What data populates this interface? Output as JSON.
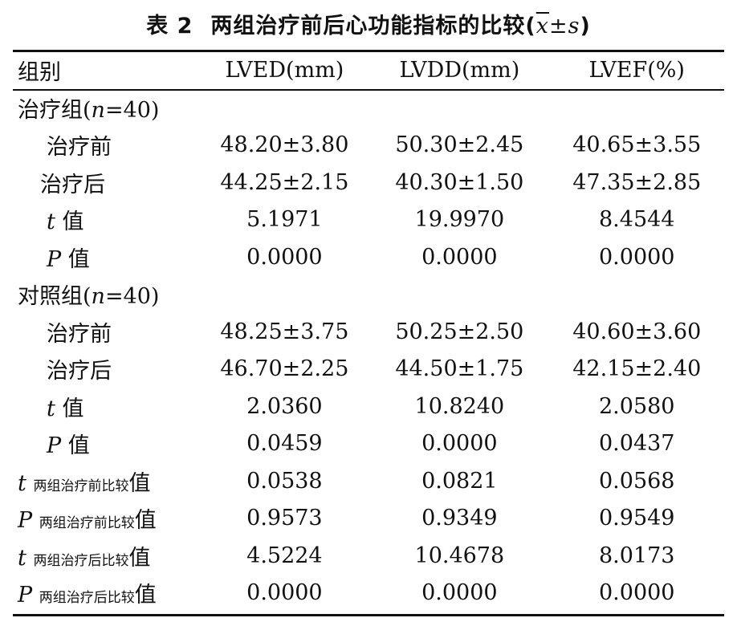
{
  "title": {
    "number": "表 2",
    "text": "两组治疗前后心功能指标的比较",
    "stat_open": "(",
    "stat_mean": "x",
    "stat_pm": "±",
    "stat_sd": "s",
    "stat_close": ")"
  },
  "table": {
    "headers": [
      "组别",
      "LVED(mm)",
      "LVDD(mm)",
      "LVEF(%)"
    ],
    "groups": [
      {
        "label_prefix": "治疗组(",
        "label_n": "n",
        "label_suffix": "=40)",
        "rows": [
          {
            "label": "治疗前",
            "values": [
              "48.20±3.80",
              "50.30±2.45",
              "40.65±3.55"
            ]
          },
          {
            "label": "治疗后",
            "values": [
              "44.25±2.15",
              "40.30±1.50",
              "47.35±2.85"
            ]
          },
          {
            "stat": "t",
            "suffix": "值",
            "values": [
              "5.1971",
              "19.9970",
              "8.4544"
            ]
          },
          {
            "stat": "P",
            "suffix": "值",
            "values": [
              "0.0000",
              "0.0000",
              "0.0000"
            ]
          }
        ]
      },
      {
        "label_prefix": "对照组(",
        "label_n": "n",
        "label_suffix": "=40)",
        "rows": [
          {
            "label": "治疗前",
            "values": [
              "48.25±3.75",
              "50.25±2.50",
              "40.60±3.60"
            ]
          },
          {
            "label": "治疗后",
            "values": [
              "46.70±2.25",
              "44.50±1.75",
              "42.15±2.40"
            ]
          },
          {
            "stat": "t",
            "suffix": "值",
            "values": [
              "2.0360",
              "10.8240",
              "2.0580"
            ]
          },
          {
            "stat": "P",
            "suffix": "值",
            "values": [
              "0.0459",
              "0.0000",
              "0.0437"
            ]
          }
        ]
      }
    ],
    "comparison_rows": [
      {
        "stat": "t",
        "sub": "两组治疗前比较",
        "suffix": "值",
        "values": [
          "0.0538",
          "0.0821",
          "0.0568"
        ]
      },
      {
        "stat": "P",
        "sub": "两组治疗前比较",
        "suffix": "值",
        "values": [
          "0.9573",
          "0.9349",
          "0.9549"
        ]
      },
      {
        "stat": "t",
        "sub": "两组治疗后比较",
        "suffix": "值",
        "values": [
          "4.5224",
          "10.4678",
          "8.0173"
        ]
      },
      {
        "stat": "P",
        "sub": "两组治疗后比较",
        "suffix": "值",
        "values": [
          "0.0000",
          "0.0000",
          "0.0000"
        ]
      }
    ]
  }
}
